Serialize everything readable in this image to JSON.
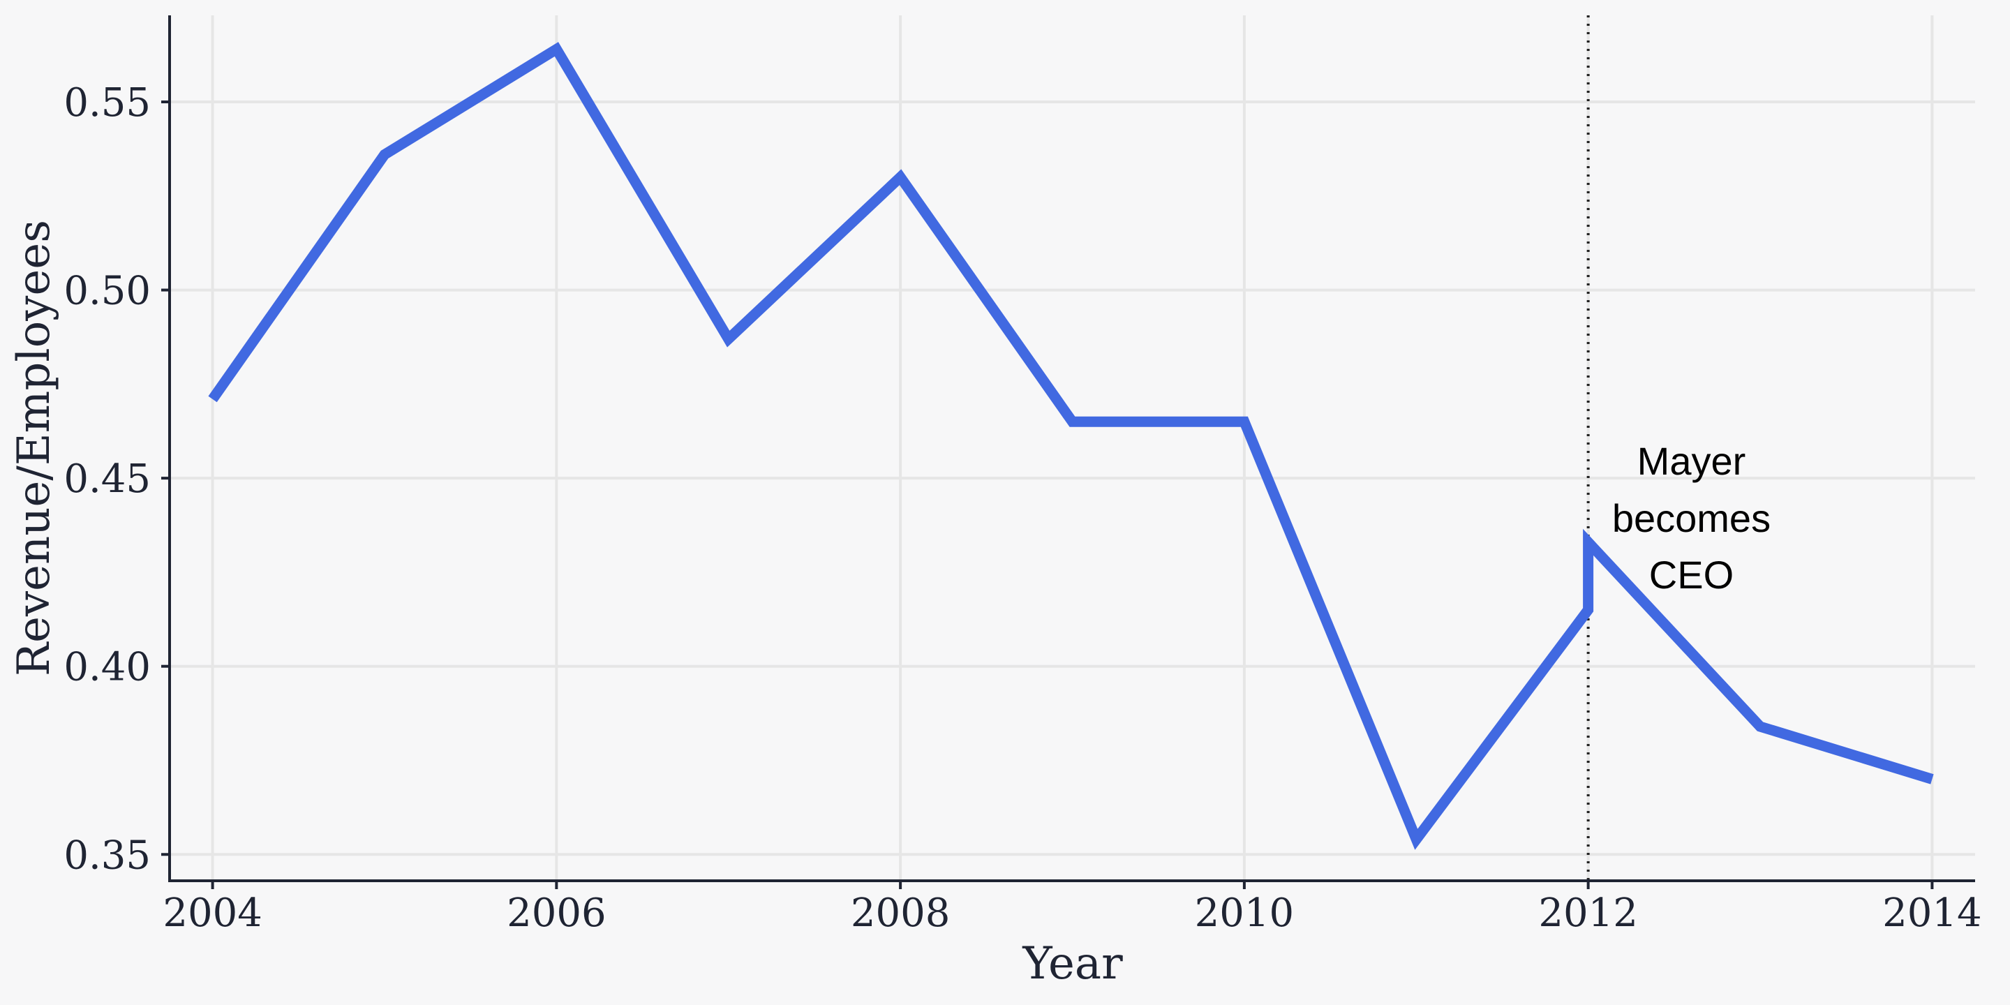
{
  "chart_data": {
    "type": "line",
    "title": "",
    "xlabel": "Year",
    "ylabel": "Revenue/Employees",
    "xlim": [
      2003.75,
      2014.25
    ],
    "ylim": [
      0.343,
      0.573
    ],
    "x_ticks": [
      2004,
      2006,
      2008,
      2010,
      2012,
      2014
    ],
    "x_tick_labels": [
      "2004",
      "2006",
      "2008",
      "2010",
      "2012",
      "2014"
    ],
    "y_ticks": [
      0.35,
      0.4,
      0.45,
      0.5,
      0.55
    ],
    "y_tick_labels": [
      "0.35",
      "0.40",
      "0.45",
      "0.50",
      "0.55"
    ],
    "grid": true,
    "series": [
      {
        "x": [
          2004,
          2005,
          2006,
          2007,
          2008,
          2009,
          2010,
          2011,
          2012,
          2012,
          2013,
          2014
        ],
        "y": [
          0.471,
          0.536,
          0.564,
          0.487,
          0.53,
          0.465,
          0.465,
          0.354,
          0.415,
          0.433,
          0.384,
          0.37
        ]
      }
    ],
    "vline": {
      "x": 2012,
      "style": "dotted"
    },
    "annotation": {
      "lines": [
        "Mayer",
        "becomes",
        "CEO"
      ],
      "x": 2012.6,
      "y": 0.437
    },
    "colors": {
      "line": "#4169e1",
      "background": "#f7f7f8",
      "grid": "#e6e6e6",
      "axis": "#1f2433",
      "text": "#1f2433"
    }
  }
}
